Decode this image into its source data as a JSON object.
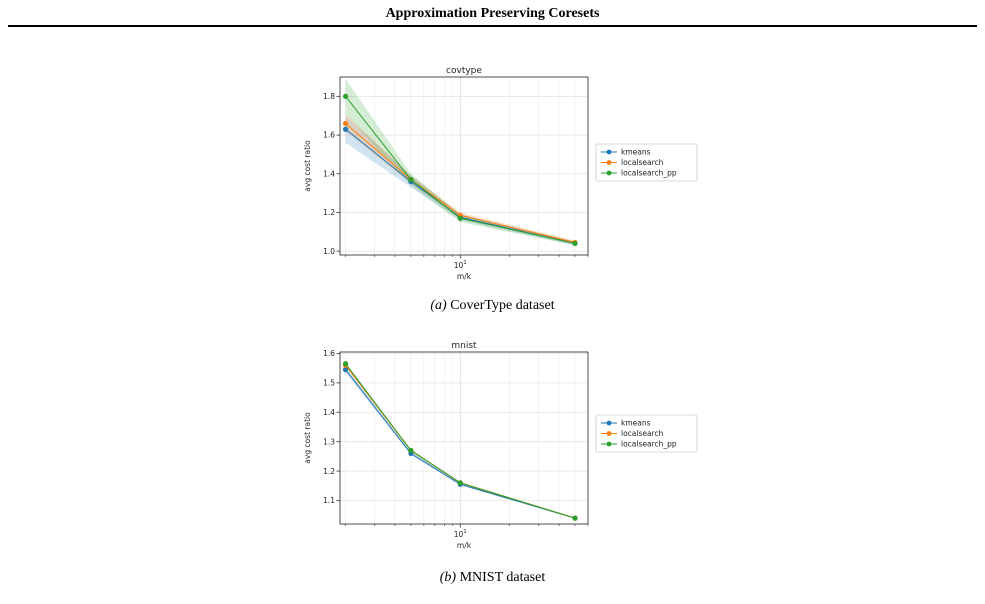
{
  "running_head": "Approximation Preserving Coresets",
  "captions": [
    {
      "label": "(a)",
      "text": "CoverType dataset"
    },
    {
      "label": "(b)",
      "text": "MNIST dataset"
    }
  ],
  "colors": {
    "kmeans": "#1f77b4",
    "localsearch": "#ff7f0e",
    "localsearch_pp": "#2ca02c"
  },
  "chart_data": [
    {
      "type": "line",
      "title": "covtype",
      "xlabel": "m/k",
      "ylabel": "avg cost ratio",
      "xscale": "log",
      "xlim": [
        1.85,
        60
      ],
      "ylim": [
        0.98,
        1.9
      ],
      "yticks": [
        "1.0",
        "1.2",
        "1.4",
        "1.6",
        "1.8"
      ],
      "xtick_label": {
        "base": "10",
        "exp": "1",
        "value": 10
      },
      "grid": true,
      "legend": "right, outside",
      "x": [
        2,
        5,
        10,
        50
      ],
      "series": [
        {
          "name": "kmeans",
          "values": [
            1.63,
            1.36,
            1.175,
            1.04
          ],
          "band": [
            [
              1.56,
              1.7
            ],
            [
              1.33,
              1.39
            ],
            [
              1.16,
              1.19
            ],
            [
              1.03,
              1.05
            ]
          ]
        },
        {
          "name": "localsearch",
          "values": [
            1.66,
            1.37,
            1.185,
            1.045
          ],
          "band": [
            [
              1.62,
              1.71
            ],
            [
              1.35,
              1.39
            ],
            [
              1.17,
              1.2
            ],
            [
              1.035,
              1.055
            ]
          ]
        },
        {
          "name": "localsearch_pp",
          "values": [
            1.8,
            1.37,
            1.17,
            1.04
          ],
          "band": [
            [
              1.71,
              1.89
            ],
            [
              1.34,
              1.4
            ],
            [
              1.15,
              1.19
            ],
            [
              1.03,
              1.05
            ]
          ]
        }
      ]
    },
    {
      "type": "line",
      "title": "mnist",
      "xlabel": "m/k",
      "ylabel": "avg cost ratio",
      "xscale": "log",
      "xlim": [
        1.85,
        60
      ],
      "ylim": [
        1.02,
        1.605
      ],
      "yticks": [
        "1.1",
        "1.2",
        "1.3",
        "1.4",
        "1.5",
        "1.6"
      ],
      "xtick_label": {
        "base": "10",
        "exp": "1",
        "value": 10
      },
      "grid": true,
      "legend": "right, outside",
      "x": [
        2,
        5,
        10,
        50
      ],
      "series": [
        {
          "name": "kmeans",
          "values": [
            1.545,
            1.26,
            1.155,
            1.04
          ],
          "band": [
            [
              1.535,
              1.555
            ],
            [
              1.255,
              1.265
            ],
            [
              1.152,
              1.158
            ],
            [
              1.038,
              1.042
            ]
          ]
        },
        {
          "name": "localsearch",
          "values": [
            1.56,
            1.27,
            1.16,
            1.04
          ],
          "band": [
            [
              1.555,
              1.565
            ],
            [
              1.266,
              1.274
            ],
            [
              1.157,
              1.163
            ],
            [
              1.038,
              1.042
            ]
          ]
        },
        {
          "name": "localsearch_pp",
          "values": [
            1.565,
            1.27,
            1.16,
            1.04
          ],
          "band": [
            [
              1.56,
              1.57
            ],
            [
              1.266,
              1.275
            ],
            [
              1.157,
              1.163
            ],
            [
              1.038,
              1.042
            ]
          ]
        }
      ]
    }
  ]
}
